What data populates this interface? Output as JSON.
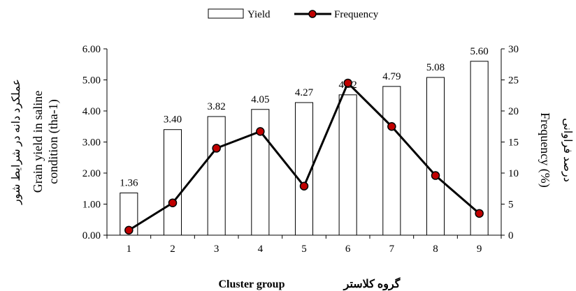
{
  "chart_data": {
    "type": "bar+line",
    "categories": [
      "1",
      "2",
      "3",
      "4",
      "5",
      "6",
      "7",
      "8",
      "9"
    ],
    "series": [
      {
        "name": "Yield",
        "type": "bar",
        "axis": "left",
        "values": [
          1.36,
          3.4,
          3.82,
          4.05,
          4.27,
          4.52,
          4.79,
          5.08,
          5.6
        ],
        "labels": [
          "1.36",
          "3.40",
          "3.82",
          "4.05",
          "4.27",
          "4.52",
          "4.79",
          "5.08",
          "5.60"
        ],
        "fill": "#ffffff",
        "stroke": "#000000"
      },
      {
        "name": "Frequency",
        "type": "line",
        "axis": "right",
        "values": [
          0.8,
          5.2,
          14.0,
          16.7,
          7.9,
          24.5,
          17.5,
          9.6,
          3.5
        ],
        "line_color": "#000000",
        "marker_color": "#c00000"
      }
    ],
    "y_left": {
      "min": 0,
      "max": 6,
      "step": 1,
      "tick_labels": [
        "0.00",
        "1.00",
        "2.00",
        "3.00",
        "4.00",
        "5.00",
        "6.00"
      ],
      "label_lines": [
        "Grain yield in saline",
        "condition (tha-1)"
      ],
      "label_fa": "عملکرد دانه در شرایط شور"
    },
    "y_right": {
      "min": 0,
      "max": 30,
      "step": 5,
      "tick_labels": [
        "0",
        "5",
        "10",
        "15",
        "20",
        "25",
        "30"
      ],
      "label": "Frequency (%)",
      "label_fa": "درصد فراوانی"
    },
    "x_axis": {
      "label": "Cluster group",
      "label_fa": "گروه کلاستر"
    },
    "legend": {
      "placement": "top-center",
      "items": [
        "Yield",
        "Frequency"
      ]
    },
    "grid": false
  }
}
